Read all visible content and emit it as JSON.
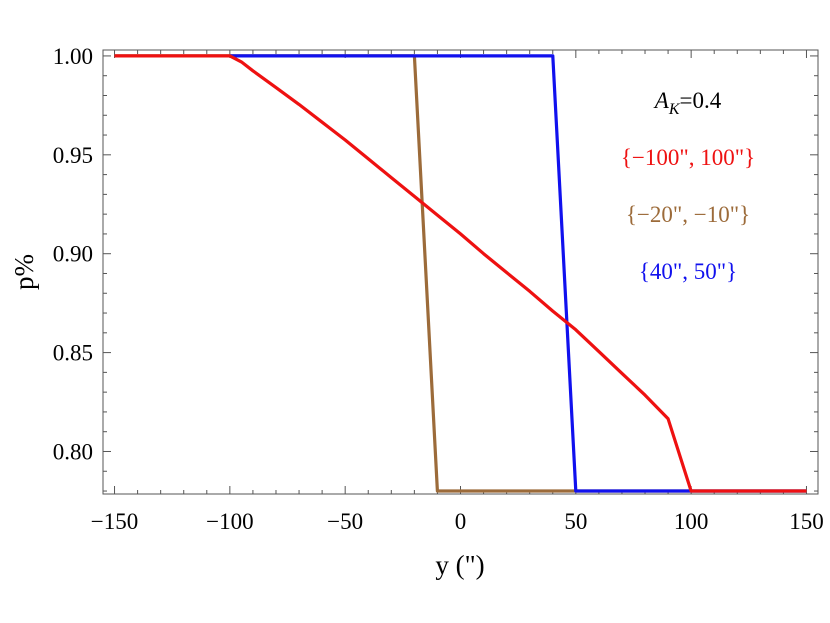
{
  "chart_data": {
    "type": "line",
    "title": "",
    "xlabel": "y (\")",
    "ylabel": "p%",
    "xlim": [
      -155,
      155
    ],
    "ylim": [
      0.7785,
      1.003
    ],
    "xticks": [
      -150,
      -100,
      -50,
      0,
      50,
      100,
      150
    ],
    "xtick_labels": [
      "−150",
      "−100",
      "−50",
      "0",
      "50",
      "100",
      "150"
    ],
    "yticks": [
      0.8,
      0.85,
      0.9,
      0.95,
      1.0
    ],
    "ytick_labels": [
      "0.80",
      "0.85",
      "0.90",
      "0.95",
      "1.00"
    ],
    "grid": false,
    "legend": "none",
    "series": [
      {
        "name": "{−100\", 100\"}",
        "color": "#ee1111",
        "x": [
          -150,
          -100,
          -95,
          -90,
          -80,
          -70,
          -60,
          -50,
          -40,
          -30,
          -20,
          -10,
          0,
          10,
          20,
          30,
          40,
          50,
          60,
          70,
          80,
          90,
          100,
          150
        ],
        "y": [
          1.0,
          1.0,
          0.997,
          0.9925,
          0.984,
          0.9755,
          0.9665,
          0.9575,
          0.948,
          0.9385,
          0.929,
          0.9195,
          0.91,
          0.9,
          0.8905,
          0.881,
          0.871,
          0.8615,
          0.8505,
          0.8395,
          0.8285,
          0.8165,
          0.78,
          0.78
        ]
      },
      {
        "name": "{−20\", −10\"}",
        "color": "#9c6b3a",
        "x": [
          -150,
          -20,
          -10,
          150
        ],
        "y": [
          1.0,
          1.0,
          0.78,
          0.78
        ]
      },
      {
        "name": "{40\", 50\"}",
        "color": "#1111ee",
        "x": [
          -100,
          40,
          50,
          150
        ],
        "y": [
          1.0,
          1.0,
          0.78,
          0.78
        ]
      }
    ],
    "annotations": [
      {
        "base": "A",
        "sub": "K",
        "rest": "=0.4",
        "color": "#000000"
      },
      {
        "text": "{−100\", 100\"}",
        "color": "#ee1111"
      },
      {
        "text": "{−20\", −10\"}",
        "color": "#9c6b3a"
      },
      {
        "text": "{40\", 50\"}",
        "color": "#1111ee"
      }
    ]
  }
}
